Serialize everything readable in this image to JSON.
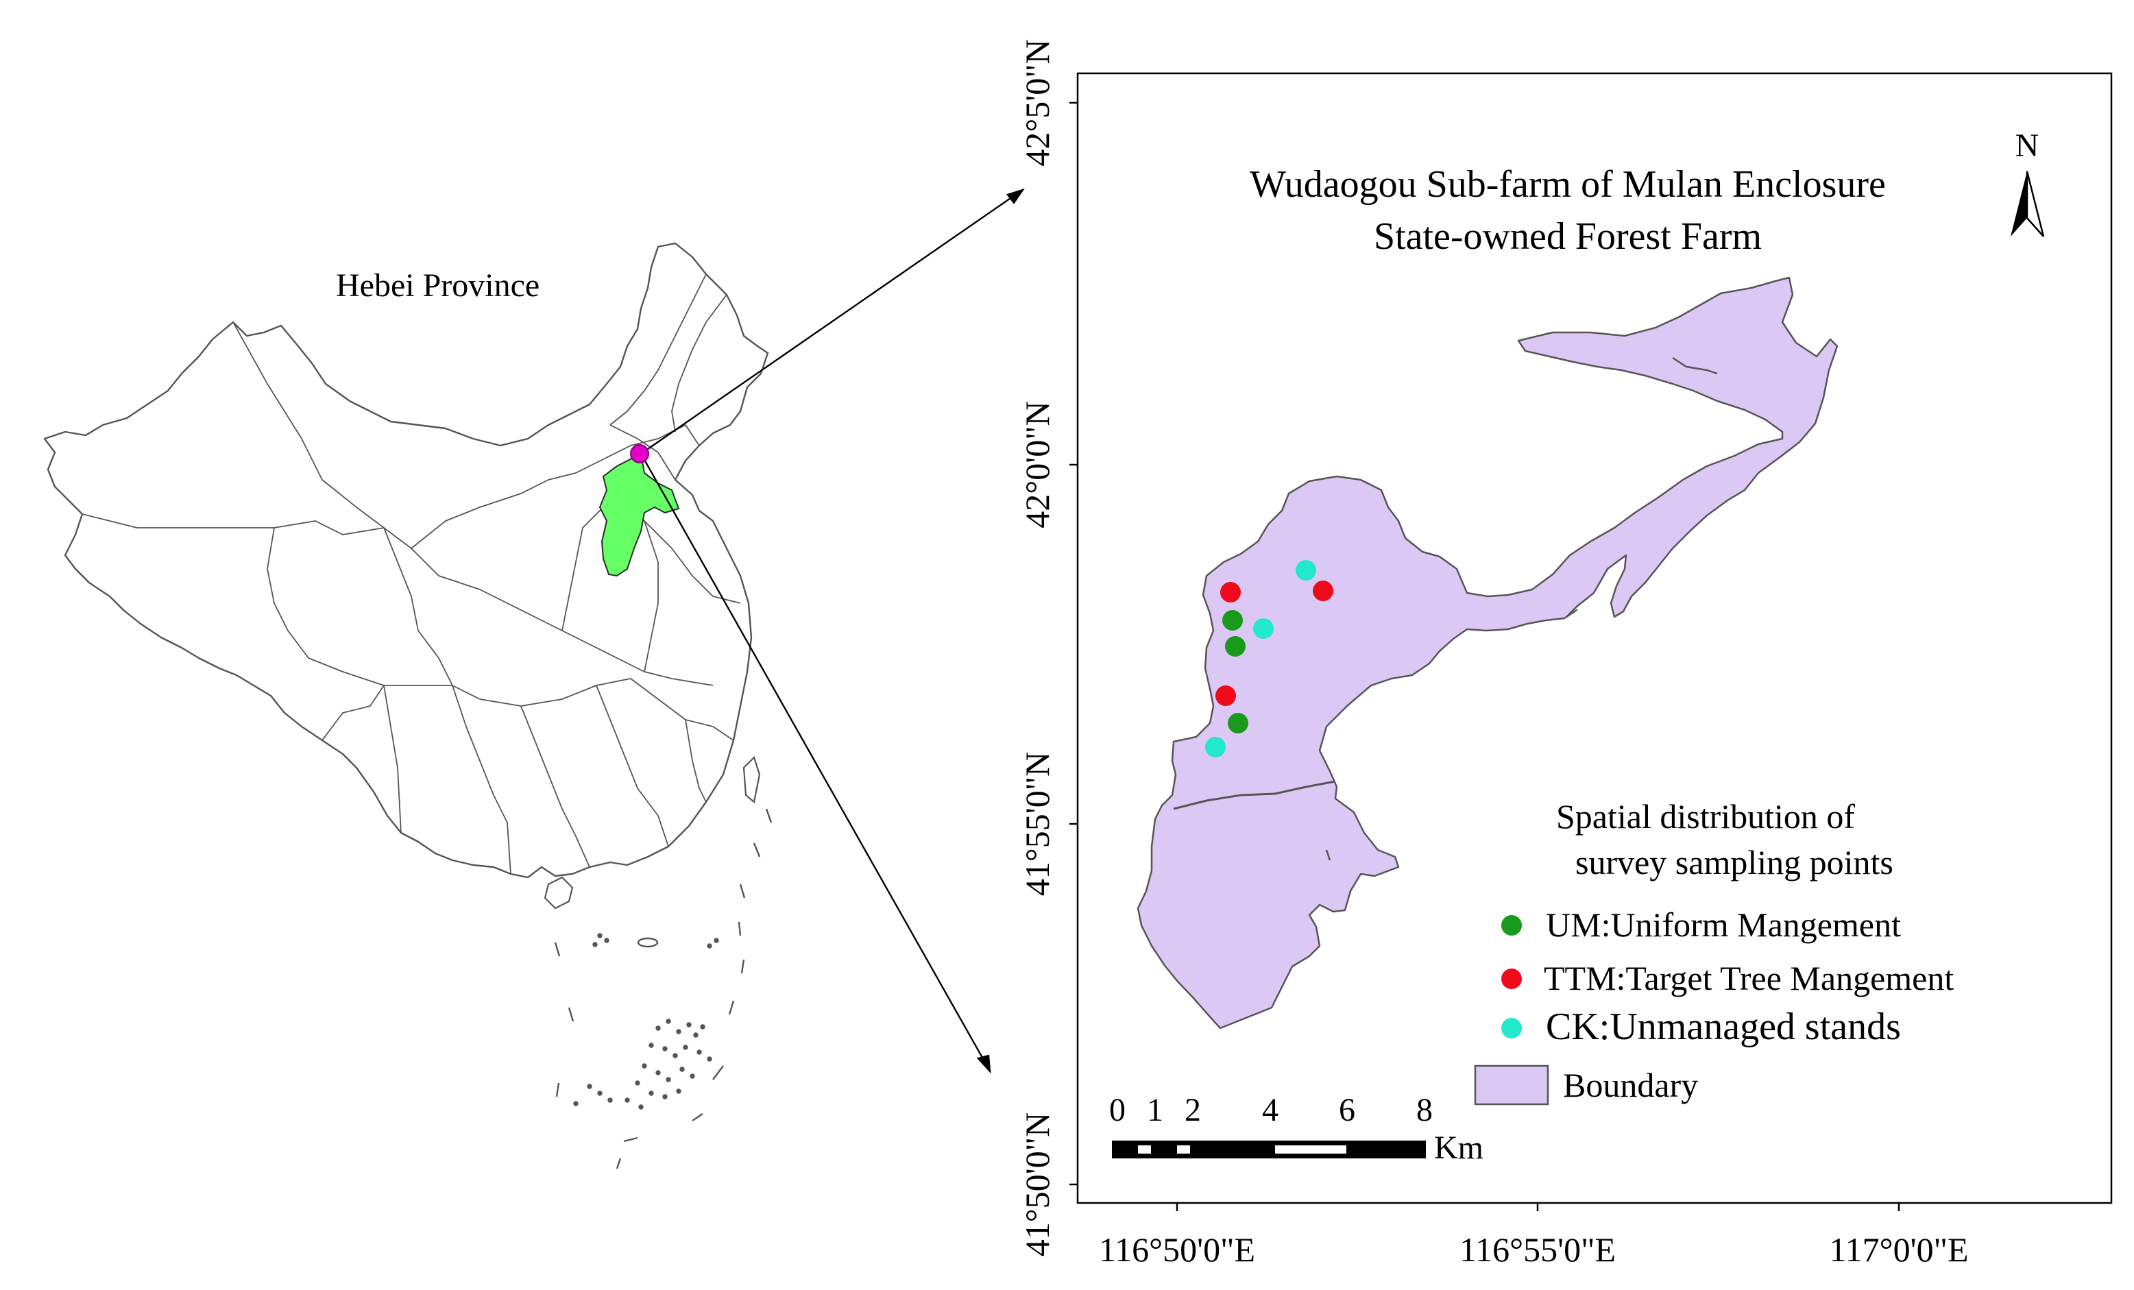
{
  "overview_map": {
    "label": "Hebei Province",
    "fill_color": "#66ff66",
    "marker_color": "#e600c8"
  },
  "study_map": {
    "title_line1": "Wudaogou Sub-farm of Mulan Enclosure",
    "title_line2": "State-owned Forest Farm",
    "north_label": "N",
    "boundary_color": "#dcc8f5",
    "x_ticks": [
      "116°50'0\"E",
      "116°55'0\"E",
      "117°0'0\"E"
    ],
    "y_ticks": [
      "42°5'0\"N",
      "42°0'0\"N",
      "41°55'0\"N",
      "41°50'0\"N"
    ]
  },
  "legend": {
    "title_line1": "Spatial distribution of",
    "title_line2": "survey sampling points",
    "items": [
      {
        "label": "UM:Uniform Mangement",
        "color": "#1a9a1a"
      },
      {
        "label": "TTM:Target Tree Mangement",
        "color": "#ee0a1a"
      },
      {
        "label": "CK:Unmanaged stands",
        "color": "#22e8cc"
      }
    ],
    "boundary_label": "Boundary"
  },
  "scale_bar": {
    "labels": [
      "0",
      "1",
      "2",
      "4",
      "6",
      "8"
    ],
    "unit": "Km"
  }
}
